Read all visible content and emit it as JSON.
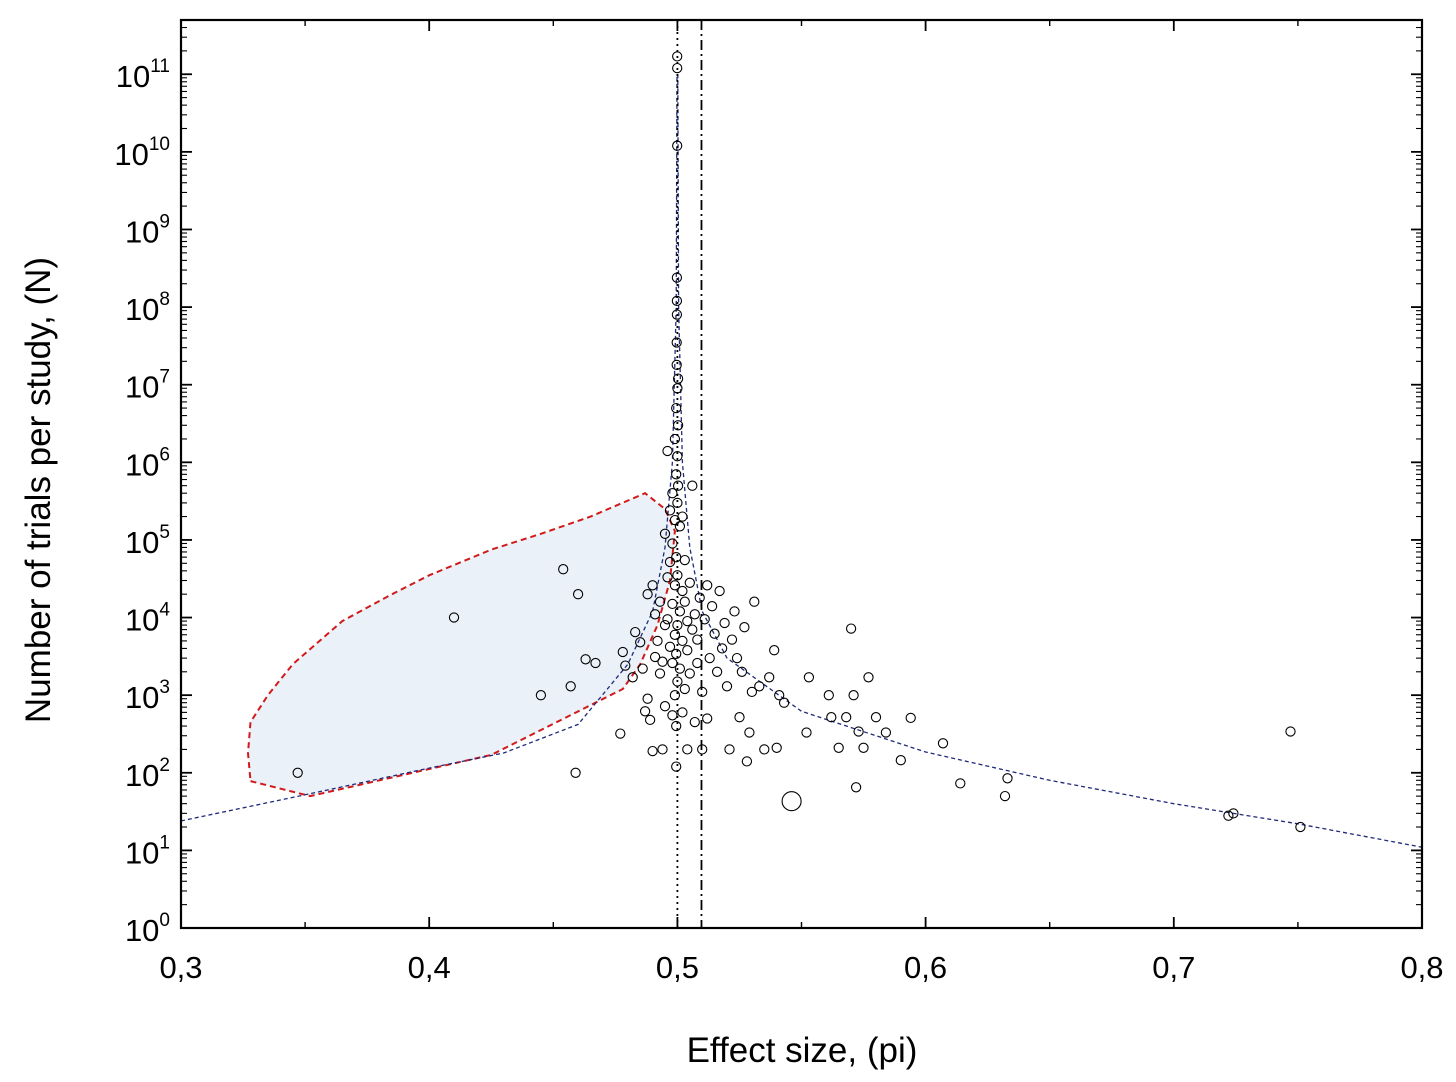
{
  "chart_data": {
    "type": "scatter",
    "title": "",
    "xlabel": "Effect size, (pi)",
    "ylabel": "Number of trials per study, (N)",
    "xlim": [
      0.3,
      0.8
    ],
    "ylim": [
      1,
      500000000000
    ],
    "yscale": "log",
    "grid": false,
    "legend": "none",
    "x_ticks": [
      0.3,
      0.4,
      0.5,
      0.6,
      0.7,
      0.8
    ],
    "x_tick_labels": [
      "0,3",
      "0,4",
      "0,5",
      "0,6",
      "0,7",
      "0,8"
    ],
    "y_ticks": [
      {
        "value": 1,
        "base": "10",
        "exp": "0"
      },
      {
        "value": 10,
        "base": "10",
        "exp": "1"
      },
      {
        "value": 100,
        "base": "10",
        "exp": "2"
      },
      {
        "value": 1000,
        "base": "10",
        "exp": "3"
      },
      {
        "value": 10000,
        "base": "10",
        "exp": "4"
      },
      {
        "value": 100000,
        "base": "10",
        "exp": "5"
      },
      {
        "value": 1000000,
        "base": "10",
        "exp": "6"
      },
      {
        "value": 10000000,
        "base": "10",
        "exp": "7"
      },
      {
        "value": 100000000,
        "base": "10",
        "exp": "8"
      },
      {
        "value": 1000000000,
        "base": "10",
        "exp": "9"
      },
      {
        "value": 10000000000,
        "base": "10",
        "exp": "10"
      },
      {
        "value": 100000000000,
        "base": "10",
        "exp": "11"
      }
    ],
    "colors": {
      "points": "#000000",
      "region_fill": "#eaf1f8",
      "region_border": "#d21a1a",
      "funnel_line": "#1f2a7a",
      "reference_lines": "#000000"
    },
    "reference_lines": [
      {
        "x": 0.5,
        "style": "dotted"
      },
      {
        "x": 0.5097,
        "style": "dash-dot"
      }
    ],
    "funnel_curve": {
      "center": 0.5,
      "left_points": [
        [
          0.3,
          24
        ],
        [
          0.35,
          52
        ],
        [
          0.4,
          115
        ],
        [
          0.43,
          180
        ],
        [
          0.46,
          420
        ],
        [
          0.48,
          2500
        ],
        [
          0.49,
          12000
        ],
        [
          0.495,
          80000
        ],
        [
          0.498,
          1000000
        ],
        [
          0.4995,
          100000000
        ],
        [
          0.49985,
          100000000000
        ]
      ],
      "right_points": [
        [
          0.50015,
          100000000000
        ],
        [
          0.5005,
          100000000
        ],
        [
          0.502,
          1000000
        ],
        [
          0.505,
          80000
        ],
        [
          0.51,
          12000
        ],
        [
          0.52,
          3000
        ],
        [
          0.55,
          620
        ],
        [
          0.6,
          185
        ],
        [
          0.65,
          80
        ],
        [
          0.7,
          40
        ],
        [
          0.75,
          22
        ],
        [
          0.8,
          11
        ]
      ]
    },
    "shaded_region": [
      [
        0.328,
        78
      ],
      [
        0.352,
        50
      ],
      [
        0.425,
        170
      ],
      [
        0.478,
        1200
      ],
      [
        0.485,
        2500
      ],
      [
        0.492,
        8000
      ],
      [
        0.497,
        30000
      ],
      [
        0.499,
        130000
      ],
      [
        0.495,
        250000
      ],
      [
        0.487,
        400000
      ],
      [
        0.465,
        200000
      ],
      [
        0.445,
        120000
      ],
      [
        0.425,
        75000
      ],
      [
        0.4,
        35000
      ],
      [
        0.385,
        20000
      ],
      [
        0.365,
        9000
      ],
      [
        0.345,
        2500
      ],
      [
        0.335,
        1000
      ],
      [
        0.328,
        450
      ],
      [
        0.327,
        180
      ]
    ],
    "points": [
      {
        "x": 0.347,
        "y": 100
      },
      {
        "x": 0.41,
        "y": 10000
      },
      {
        "x": 0.445,
        "y": 1000
      },
      {
        "x": 0.454,
        "y": 42000
      },
      {
        "x": 0.457,
        "y": 1300
      },
      {
        "x": 0.459,
        "y": 100
      },
      {
        "x": 0.46,
        "y": 20000
      },
      {
        "x": 0.463,
        "y": 2900
      },
      {
        "x": 0.467,
        "y": 2600
      },
      {
        "x": 0.477,
        "y": 320
      },
      {
        "x": 0.478,
        "y": 3600
      },
      {
        "x": 0.479,
        "y": 2400
      },
      {
        "x": 0.482,
        "y": 1700
      },
      {
        "x": 0.483,
        "y": 6500
      },
      {
        "x": 0.485,
        "y": 4800
      },
      {
        "x": 0.486,
        "y": 2200
      },
      {
        "x": 0.487,
        "y": 620
      },
      {
        "x": 0.488,
        "y": 900
      },
      {
        "x": 0.488,
        "y": 20000
      },
      {
        "x": 0.489,
        "y": 480
      },
      {
        "x": 0.49,
        "y": 190
      },
      {
        "x": 0.49,
        "y": 26000
      },
      {
        "x": 0.491,
        "y": 3100
      },
      {
        "x": 0.491,
        "y": 11000
      },
      {
        "x": 0.492,
        "y": 5000
      },
      {
        "x": 0.493,
        "y": 1900
      },
      {
        "x": 0.493,
        "y": 16000
      },
      {
        "x": 0.494,
        "y": 2700
      },
      {
        "x": 0.494,
        "y": 200
      },
      {
        "x": 0.495,
        "y": 720
      },
      {
        "x": 0.495,
        "y": 8000
      },
      {
        "x": 0.495,
        "y": 120000
      },
      {
        "x": 0.496,
        "y": 9500
      },
      {
        "x": 0.496,
        "y": 33000
      },
      {
        "x": 0.496,
        "y": 1400000
      },
      {
        "x": 0.497,
        "y": 4200
      },
      {
        "x": 0.497,
        "y": 52000
      },
      {
        "x": 0.497,
        "y": 240000
      },
      {
        "x": 0.498,
        "y": 550
      },
      {
        "x": 0.498,
        "y": 2600
      },
      {
        "x": 0.498,
        "y": 15000
      },
      {
        "x": 0.498,
        "y": 90000
      },
      {
        "x": 0.498,
        "y": 400000
      },
      {
        "x": 0.499,
        "y": 1000
      },
      {
        "x": 0.499,
        "y": 6000
      },
      {
        "x": 0.499,
        "y": 26000
      },
      {
        "x": 0.499,
        "y": 180000
      },
      {
        "x": 0.499,
        "y": 2000000
      },
      {
        "x": 0.4995,
        "y": 120
      },
      {
        "x": 0.4995,
        "y": 400
      },
      {
        "x": 0.4995,
        "y": 3400
      },
      {
        "x": 0.4995,
        "y": 60000
      },
      {
        "x": 0.4995,
        "y": 700000
      },
      {
        "x": 0.4995,
        "y": 5000000
      },
      {
        "x": 0.4997,
        "y": 18000000
      },
      {
        "x": 0.4997,
        "y": 35000000
      },
      {
        "x": 0.4998,
        "y": 80000000
      },
      {
        "x": 0.4998,
        "y": 120000000
      },
      {
        "x": 0.4998,
        "y": 240000000
      },
      {
        "x": 0.4999,
        "y": 12000000000
      },
      {
        "x": 0.4999,
        "y": 120000000000
      },
      {
        "x": 0.4999,
        "y": 170000000000
      },
      {
        "x": 0.5,
        "y": 1500
      },
      {
        "x": 0.5,
        "y": 8000
      },
      {
        "x": 0.5,
        "y": 35000
      },
      {
        "x": 0.5,
        "y": 300000
      },
      {
        "x": 0.5,
        "y": 1200000
      },
      {
        "x": 0.5,
        "y": 9000000
      },
      {
        "x": 0.5003,
        "y": 3000000
      },
      {
        "x": 0.5003,
        "y": 12000000
      },
      {
        "x": 0.5003,
        "y": 500000
      },
      {
        "x": 0.501,
        "y": 2200
      },
      {
        "x": 0.501,
        "y": 12000
      },
      {
        "x": 0.501,
        "y": 150000
      },
      {
        "x": 0.502,
        "y": 600
      },
      {
        "x": 0.502,
        "y": 5000
      },
      {
        "x": 0.502,
        "y": 22000
      },
      {
        "x": 0.502,
        "y": 200000
      },
      {
        "x": 0.503,
        "y": 1200
      },
      {
        "x": 0.503,
        "y": 16000
      },
      {
        "x": 0.503,
        "y": 55000
      },
      {
        "x": 0.504,
        "y": 200
      },
      {
        "x": 0.504,
        "y": 3800
      },
      {
        "x": 0.504,
        "y": 9000
      },
      {
        "x": 0.505,
        "y": 1900
      },
      {
        "x": 0.505,
        "y": 28000
      },
      {
        "x": 0.506,
        "y": 7000
      },
      {
        "x": 0.506,
        "y": 500000
      },
      {
        "x": 0.507,
        "y": 450
      },
      {
        "x": 0.507,
        "y": 11000
      },
      {
        "x": 0.508,
        "y": 2600
      },
      {
        "x": 0.508,
        "y": 5200
      },
      {
        "x": 0.509,
        "y": 18000
      },
      {
        "x": 0.51,
        "y": 200
      },
      {
        "x": 0.51,
        "y": 1100
      },
      {
        "x": 0.511,
        "y": 9500
      },
      {
        "x": 0.512,
        "y": 500
      },
      {
        "x": 0.512,
        "y": 26000
      },
      {
        "x": 0.513,
        "y": 3000
      },
      {
        "x": 0.514,
        "y": 14000
      },
      {
        "x": 0.515,
        "y": 6200
      },
      {
        "x": 0.516,
        "y": 2000
      },
      {
        "x": 0.517,
        "y": 22000
      },
      {
        "x": 0.518,
        "y": 4000
      },
      {
        "x": 0.519,
        "y": 8500
      },
      {
        "x": 0.52,
        "y": 1300
      },
      {
        "x": 0.521,
        "y": 200
      },
      {
        "x": 0.522,
        "y": 5200
      },
      {
        "x": 0.523,
        "y": 12000
      },
      {
        "x": 0.524,
        "y": 3000
      },
      {
        "x": 0.525,
        "y": 520
      },
      {
        "x": 0.526,
        "y": 2000
      },
      {
        "x": 0.527,
        "y": 7500
      },
      {
        "x": 0.528,
        "y": 140
      },
      {
        "x": 0.529,
        "y": 330
      },
      {
        "x": 0.53,
        "y": 1100
      },
      {
        "x": 0.531,
        "y": 16000
      },
      {
        "x": 0.533,
        "y": 1300
      },
      {
        "x": 0.535,
        "y": 200
      },
      {
        "x": 0.537,
        "y": 1700
      },
      {
        "x": 0.539,
        "y": 3800
      },
      {
        "x": 0.54,
        "y": 210
      },
      {
        "x": 0.541,
        "y": 1000
      },
      {
        "x": 0.543,
        "y": 800
      },
      {
        "x": 0.546,
        "y": 43,
        "size": "large"
      },
      {
        "x": 0.552,
        "y": 330
      },
      {
        "x": 0.553,
        "y": 1700
      },
      {
        "x": 0.561,
        "y": 1000
      },
      {
        "x": 0.562,
        "y": 520
      },
      {
        "x": 0.565,
        "y": 210
      },
      {
        "x": 0.568,
        "y": 520
      },
      {
        "x": 0.57,
        "y": 7200
      },
      {
        "x": 0.571,
        "y": 1000
      },
      {
        "x": 0.572,
        "y": 65
      },
      {
        "x": 0.573,
        "y": 340
      },
      {
        "x": 0.575,
        "y": 210
      },
      {
        "x": 0.577,
        "y": 1700
      },
      {
        "x": 0.58,
        "y": 520
      },
      {
        "x": 0.584,
        "y": 330
      },
      {
        "x": 0.59,
        "y": 145
      },
      {
        "x": 0.594,
        "y": 510
      },
      {
        "x": 0.607,
        "y": 240
      },
      {
        "x": 0.614,
        "y": 73
      },
      {
        "x": 0.632,
        "y": 50
      },
      {
        "x": 0.633,
        "y": 85
      },
      {
        "x": 0.722,
        "y": 28
      },
      {
        "x": 0.724,
        "y": 30
      },
      {
        "x": 0.747,
        "y": 340
      },
      {
        "x": 0.751,
        "y": 20
      }
    ]
  }
}
